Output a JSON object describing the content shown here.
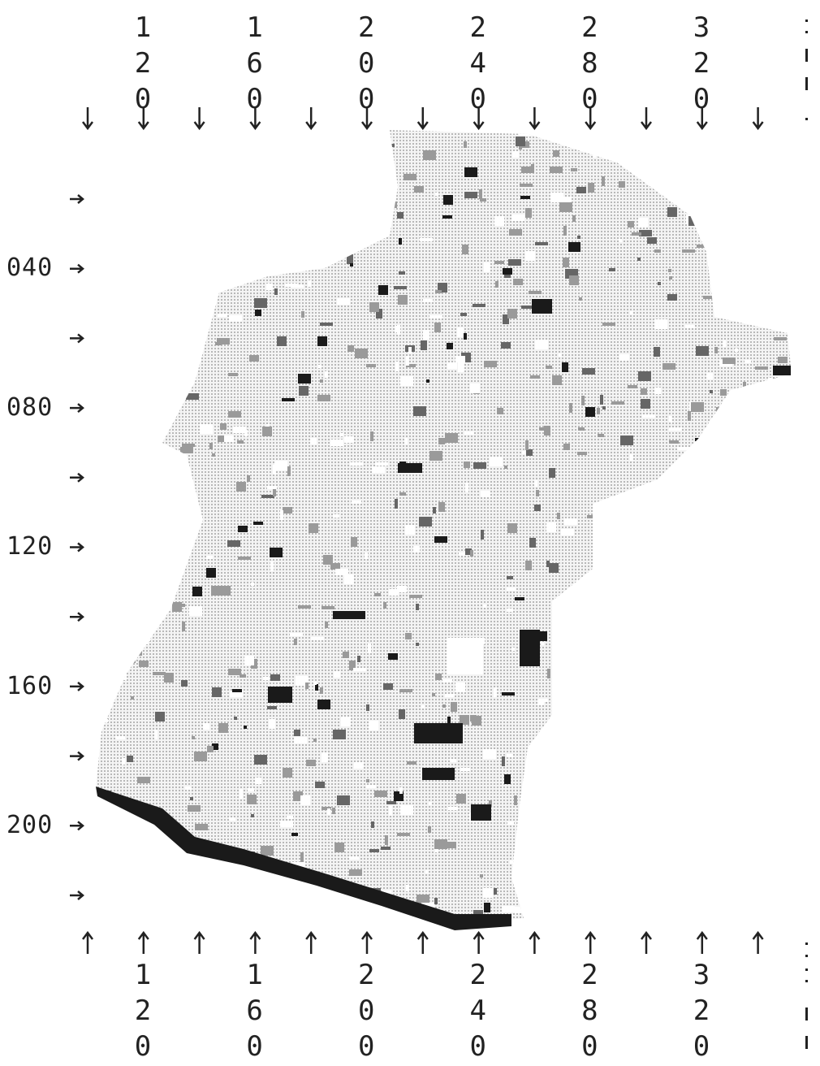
{
  "top_axis": {
    "labels": [
      "120",
      "160",
      "200",
      "240",
      "280",
      "320"
    ]
  },
  "bottom_axis": {
    "labels": [
      "120",
      "160",
      "200",
      "240",
      "280",
      "320"
    ]
  },
  "left_axis": {
    "labels": [
      "040",
      "080",
      "120",
      "160",
      "200"
    ]
  }
}
